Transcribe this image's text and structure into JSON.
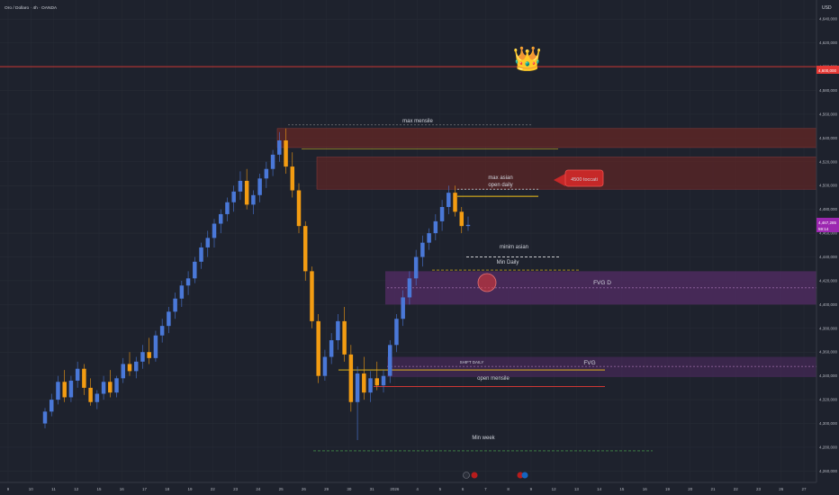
{
  "header": {
    "symbol_title": "Oro / Dollaro · 4h · OANDA",
    "currency": "USD"
  },
  "colors": {
    "background": "#1e222d",
    "grid": "#2a2e39",
    "bull": "#4a78d8",
    "bear": "#f39c12",
    "resistance_zone": "#5c2626",
    "fvg_zone": "#4a2a5c",
    "red_line": "#e53935",
    "yellow_line": "#f5c518",
    "green_dash": "#4caf50",
    "label_red": "#c62828",
    "label_purple": "#9c27b0"
  },
  "chart_data": {
    "type": "candlestick",
    "y_axis": {
      "range": [
        4255,
        4650
      ],
      "ticks": [
        "4,640,000",
        "4,620,000",
        "4,600,000",
        "4,580,000",
        "4,560,000",
        "4,540,000",
        "4,520,000",
        "4,500,000",
        "4,480,000",
        "4,460,000",
        "4,440,000",
        "4,420,000",
        "4,400,000",
        "4,380,000",
        "4,360,000",
        "4,340,000",
        "4,320,000",
        "4,300,000",
        "4,280,000",
        "4,260,000"
      ]
    },
    "x_axis": {
      "ticks": [
        "9",
        "10",
        "11",
        "12",
        "15",
        "16",
        "17",
        "18",
        "19",
        "22",
        "23",
        "24",
        "25",
        "26",
        "29",
        "30",
        "31",
        "2026",
        "4",
        "5",
        "6",
        "7",
        "8",
        "9",
        "12",
        "13",
        "14",
        "15",
        "16",
        "19",
        "20",
        "21",
        "22",
        "23",
        "26",
        "27"
      ]
    },
    "price_labels": {
      "red_level": "4,600,000",
      "current": "4,467,285",
      "countdown": "59:14"
    },
    "levels": [
      {
        "name": "max mensile",
        "price": 4542
      },
      {
        "name": "max asian",
        "price": 4493
      },
      {
        "name": "open daily",
        "price": 4491
      },
      {
        "name": "minim asian",
        "price": 4440
      },
      {
        "name": "Min Daily",
        "price": 4428
      },
      {
        "name": "FVG D",
        "price": 4414
      },
      {
        "name": "SHIFT DAILY",
        "price": 4346
      },
      {
        "name": "FVG",
        "price": 4346
      },
      {
        "name": "open mensile",
        "price": 4332
      },
      {
        "name": "Min week",
        "price": 4277
      }
    ],
    "annotations": {
      "max_mensile": "max mensile",
      "max_asian": "max asian",
      "open_daily": "open daily",
      "tocchi": "4500 toccati",
      "minim_asian": "minim asian",
      "min_daily": "Min Daily",
      "fvg_d": "FVG D",
      "shift_daily": "SHIFT DAILY",
      "fvg": "FVG",
      "open_mensile": "open mensile",
      "min_week": "Min week",
      "crown": "👑"
    },
    "candles": [
      [
        4300,
        4313,
        4296,
        4310
      ],
      [
        4310,
        4325,
        4306,
        4320
      ],
      [
        4320,
        4340,
        4316,
        4335
      ],
      [
        4335,
        4345,
        4318,
        4322
      ],
      [
        4322,
        4340,
        4318,
        4336
      ],
      [
        4336,
        4352,
        4330,
        4346
      ],
      [
        4346,
        4350,
        4324,
        4330
      ],
      [
        4330,
        4338,
        4315,
        4318
      ],
      [
        4318,
        4328,
        4312,
        4325
      ],
      [
        4325,
        4340,
        4320,
        4335
      ],
      [
        4335,
        4345,
        4322,
        4326
      ],
      [
        4326,
        4340,
        4322,
        4338
      ],
      [
        4338,
        4355,
        4334,
        4350
      ],
      [
        4350,
        4360,
        4340,
        4344
      ],
      [
        4344,
        4356,
        4338,
        4352
      ],
      [
        4352,
        4366,
        4346,
        4360
      ],
      [
        4360,
        4372,
        4350,
        4355
      ],
      [
        4355,
        4378,
        4352,
        4374
      ],
      [
        4374,
        4388,
        4368,
        4382
      ],
      [
        4382,
        4398,
        4376,
        4394
      ],
      [
        4394,
        4410,
        4388,
        4405
      ],
      [
        4405,
        4420,
        4398,
        4416
      ],
      [
        4416,
        4428,
        4408,
        4422
      ],
      [
        4422,
        4440,
        4418,
        4436
      ],
      [
        4436,
        4452,
        4430,
        4448
      ],
      [
        4448,
        4462,
        4440,
        4456
      ],
      [
        4456,
        4472,
        4448,
        4468
      ],
      [
        4468,
        4480,
        4460,
        4476
      ],
      [
        4476,
        4490,
        4470,
        4486
      ],
      [
        4486,
        4500,
        4478,
        4495
      ],
      [
        4495,
        4512,
        4488,
        4504
      ],
      [
        4504,
        4514,
        4480,
        4484
      ],
      [
        4484,
        4496,
        4476,
        4492
      ],
      [
        4492,
        4510,
        4486,
        4506
      ],
      [
        4506,
        4520,
        4498,
        4514
      ],
      [
        4514,
        4530,
        4508,
        4526
      ],
      [
        4526,
        4545,
        4520,
        4538
      ],
      [
        4538,
        4548,
        4510,
        4516
      ],
      [
        4516,
        4528,
        4490,
        4496
      ],
      [
        4496,
        4502,
        4460,
        4466
      ],
      [
        4466,
        4470,
        4420,
        4428
      ],
      [
        4428,
        4432,
        4380,
        4386
      ],
      [
        4386,
        4392,
        4334,
        4340
      ],
      [
        4340,
        4362,
        4336,
        4356
      ],
      [
        4356,
        4376,
        4350,
        4370
      ],
      [
        4370,
        4392,
        4362,
        4386
      ],
      [
        4386,
        4398,
        4352,
        4358
      ],
      [
        4358,
        4366,
        4310,
        4318
      ],
      [
        4318,
        4348,
        4286,
        4342
      ],
      [
        4342,
        4356,
        4320,
        4326
      ],
      [
        4326,
        4344,
        4318,
        4338
      ],
      [
        4338,
        4352,
        4328,
        4332
      ],
      [
        4332,
        4345,
        4326,
        4340
      ],
      [
        4340,
        4370,
        4334,
        4366
      ],
      [
        4366,
        4392,
        4360,
        4388
      ],
      [
        4388,
        4412,
        4382,
        4406
      ],
      [
        4406,
        4428,
        4400,
        4422
      ],
      [
        4422,
        4446,
        4416,
        4440
      ],
      [
        4440,
        4458,
        4432,
        4452
      ],
      [
        4452,
        4464,
        4446,
        4460
      ],
      [
        4460,
        4476,
        4454,
        4470
      ],
      [
        4470,
        4488,
        4462,
        4482
      ],
      [
        4482,
        4500,
        4476,
        4494
      ],
      [
        4494,
        4500,
        4474,
        4478
      ],
      [
        4478,
        4482,
        4460,
        4466
      ],
      [
        4466,
        4474,
        4462,
        4467
      ]
    ]
  }
}
